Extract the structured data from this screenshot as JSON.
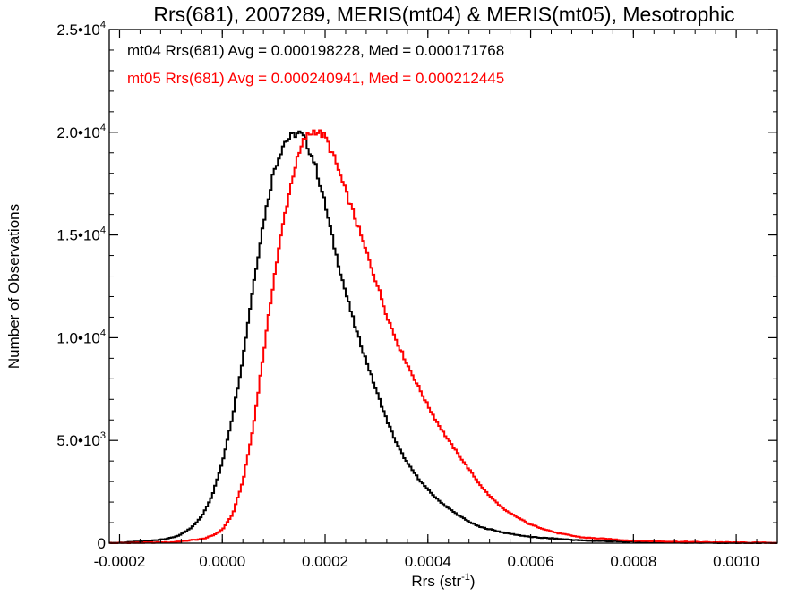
{
  "chart_data": {
    "type": "line",
    "step": true,
    "title": "Rrs(681), 2007289, MERIS(mt04) & MERIS(mt05), Mesotrophic",
    "xlabel": "Rrs (str",
    "xlabel_sup": "-1",
    "xlabel_end": ")",
    "ylabel": "Number of Observations",
    "xlim": [
      -0.00022,
      0.00108
    ],
    "ylim": [
      0,
      25000
    ],
    "xticks": [
      {
        "value": -0.0002,
        "label": "-0.0002"
      },
      {
        "value": 0.0,
        "label": "0.0000"
      },
      {
        "value": 0.0002,
        "label": "0.0002"
      },
      {
        "value": 0.0004,
        "label": "0.0004"
      },
      {
        "value": 0.0006,
        "label": "0.0006"
      },
      {
        "value": 0.0008,
        "label": "0.0008"
      },
      {
        "value": 0.001,
        "label": "0.0010"
      }
    ],
    "yticks": [
      {
        "value": 0,
        "mant": "0",
        "exp": ""
      },
      {
        "value": 5000,
        "mant": "5.0•10",
        "exp": "3"
      },
      {
        "value": 10000,
        "mant": "1.0•10",
        "exp": "4"
      },
      {
        "value": 15000,
        "mant": "1.5•10",
        "exp": "4"
      },
      {
        "value": 20000,
        "mant": "2.0•10",
        "exp": "4"
      },
      {
        "value": 25000,
        "mant": "2.5•10",
        "exp": "4"
      }
    ],
    "grid": false,
    "annotations": [
      {
        "text": "mt04 Rrs(681) Avg = 0.000198228, Med = 0.000171768",
        "color": "#000000"
      },
      {
        "text": "mt05 Rrs(681) Avg = 0.000240941, Med = 0.000212445",
        "color": "#ff0000"
      }
    ],
    "series": [
      {
        "color": "#000000",
        "x": [
          -0.00022,
          -0.00015,
          -0.0001,
          -8e-05,
          -6e-05,
          -4e-05,
          -2e-05,
          0.0,
          2e-05,
          4e-05,
          6e-05,
          8e-05,
          0.0001,
          0.00012,
          0.00014,
          0.00015,
          0.00016,
          0.00018,
          0.0002,
          0.00022,
          0.00024,
          0.00026,
          0.00028,
          0.0003,
          0.00032,
          0.00034,
          0.00036,
          0.00038,
          0.0004,
          0.00042,
          0.00044,
          0.00046,
          0.00048,
          0.0005,
          0.00055,
          0.0006,
          0.0007,
          0.0008,
          0.0009,
          0.001,
          0.00108
        ],
        "y": [
          0,
          80,
          250,
          420,
          750,
          1300,
          2300,
          3900,
          6200,
          9000,
          12500,
          15600,
          18100,
          19500,
          19900,
          19950,
          19700,
          18500,
          16500,
          14200,
          12200,
          10400,
          8900,
          7400,
          6000,
          4800,
          3900,
          3200,
          2600,
          2100,
          1700,
          1350,
          1050,
          800,
          500,
          300,
          130,
          60,
          25,
          10,
          5
        ]
      },
      {
        "color": "#ff0000",
        "x": [
          -0.00022,
          -0.0001,
          -4e-05,
          -2e-05,
          0.0,
          2e-05,
          4e-05,
          6e-05,
          8e-05,
          0.0001,
          0.00012,
          0.00014,
          0.00016,
          0.00018,
          0.0002,
          0.00022,
          0.00024,
          0.00026,
          0.00028,
          0.0003,
          0.00032,
          0.00034,
          0.00036,
          0.00038,
          0.0004,
          0.00042,
          0.00044,
          0.00046,
          0.00048,
          0.0005,
          0.00052,
          0.00055,
          0.0006,
          0.00065,
          0.0007,
          0.0008,
          0.0009,
          0.001,
          0.00108
        ],
        "y": [
          0,
          40,
          200,
          350,
          650,
          1400,
          3000,
          5600,
          9200,
          12800,
          15800,
          18200,
          19700,
          20100,
          19800,
          18600,
          17100,
          15700,
          14200,
          12700,
          11100,
          9800,
          8700,
          7700,
          6700,
          5800,
          5000,
          4300,
          3600,
          2900,
          2300,
          1600,
          900,
          500,
          280,
          120,
          60,
          30,
          15
        ]
      }
    ]
  }
}
